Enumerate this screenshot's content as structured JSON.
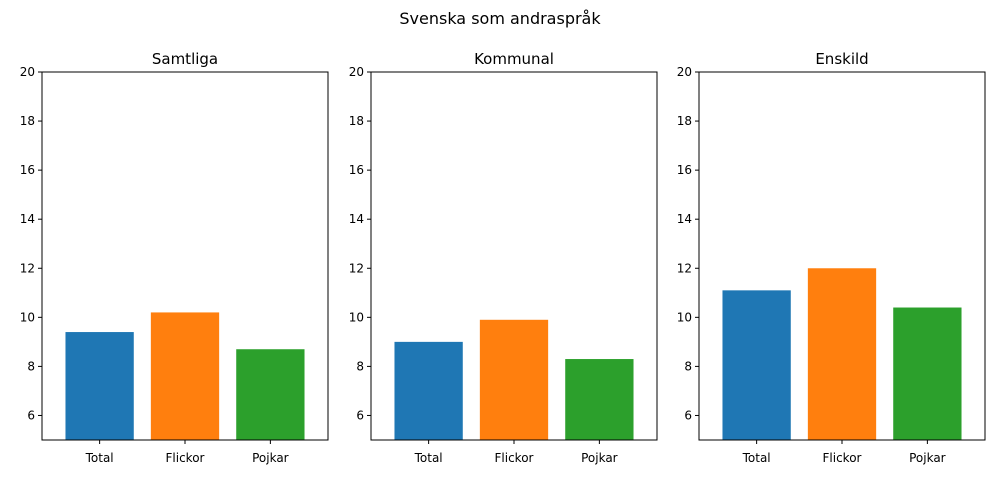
{
  "figure_title": "Svenska som andraspråk",
  "chart_data": [
    {
      "type": "bar",
      "title": "Samtliga",
      "categories": [
        "Total",
        "Flickor",
        "Pojkar"
      ],
      "values": [
        9.4,
        10.2,
        8.7
      ],
      "colors": [
        "#1f77b4",
        "#ff7f0e",
        "#2ca02c"
      ],
      "ylim": [
        5,
        20
      ],
      "yticks": [
        6,
        8,
        10,
        12,
        14,
        16,
        18,
        20
      ],
      "grid": false
    },
    {
      "type": "bar",
      "title": "Kommunal",
      "categories": [
        "Total",
        "Flickor",
        "Pojkar"
      ],
      "values": [
        9.0,
        9.9,
        8.3
      ],
      "colors": [
        "#1f77b4",
        "#ff7f0e",
        "#2ca02c"
      ],
      "ylim": [
        5,
        20
      ],
      "yticks": [
        6,
        8,
        10,
        12,
        14,
        16,
        18,
        20
      ],
      "grid": false
    },
    {
      "type": "bar",
      "title": "Enskild",
      "categories": [
        "Total",
        "Flickor",
        "Pojkar"
      ],
      "values": [
        11.1,
        12.0,
        10.4
      ],
      "colors": [
        "#1f77b4",
        "#ff7f0e",
        "#2ca02c"
      ],
      "ylim": [
        5,
        20
      ],
      "yticks": [
        6,
        8,
        10,
        12,
        14,
        16,
        18,
        20
      ],
      "grid": false
    }
  ]
}
